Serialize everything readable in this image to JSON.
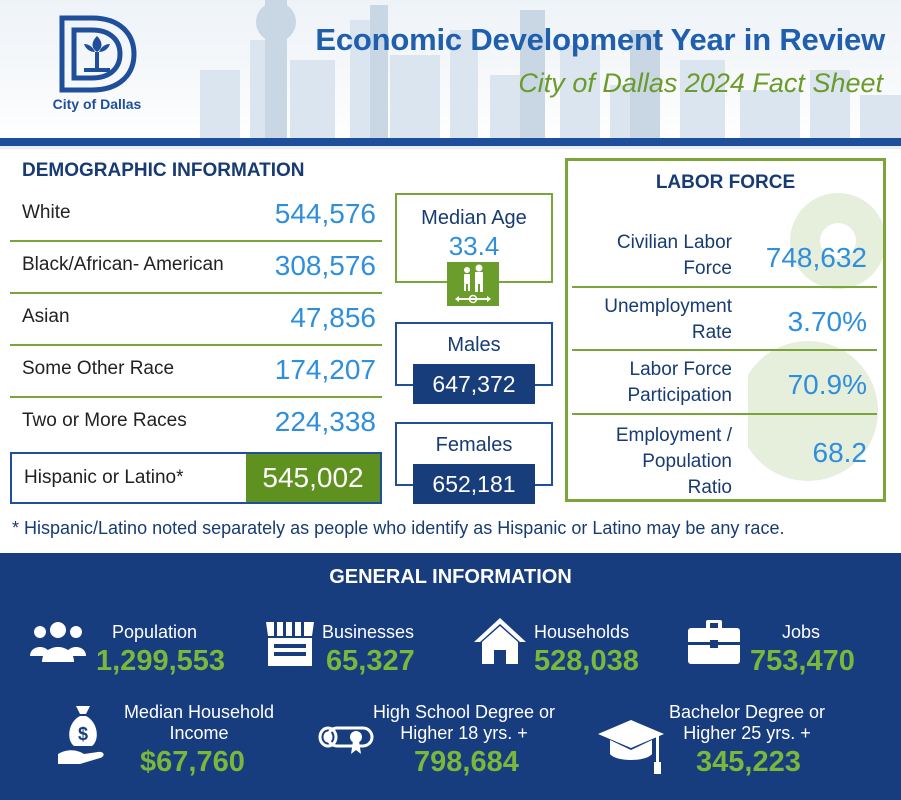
{
  "header": {
    "logo_text": "City of Dallas",
    "title": "Economic Development Year in Review",
    "subtitle": "City of Dallas 2024 Fact Sheet"
  },
  "demographics": {
    "title": "DEMOGRAPHIC INFORMATION",
    "rows": [
      {
        "label": "White",
        "value": "544,576"
      },
      {
        "label": "Black/African- American",
        "value": "308,576"
      },
      {
        "label": "Asian",
        "value": "47,856"
      },
      {
        "label": "Some Other Race",
        "value": "174,207"
      },
      {
        "label": "Two or More Races",
        "value": "224,338"
      }
    ],
    "hispanic": {
      "label": "Hispanic or Latino*",
      "value": "545,002"
    }
  },
  "median_age": {
    "label": "Median Age",
    "value": "33.4"
  },
  "males": {
    "label": "Males",
    "value": "647,372"
  },
  "females": {
    "label": "Females",
    "value": "652,181"
  },
  "labor_force": {
    "title": "LABOR FORCE",
    "rows": [
      {
        "label_line1": "Civilian Labor",
        "label_line2": "Force",
        "label_line3": "",
        "value": "748,632"
      },
      {
        "label_line1": "Unemployment",
        "label_line2": "Rate",
        "label_line3": "",
        "value": "3.70%"
      },
      {
        "label_line1": "Labor Force",
        "label_line2": "Participation",
        "label_line3": "",
        "value": "70.9%"
      },
      {
        "label_line1": "Employment /",
        "label_line2": "Population",
        "label_line3": "Ratio",
        "value": "68.2"
      }
    ]
  },
  "footnote": "* Hispanic/Latino noted separately as people who identify as Hispanic or Latino may be any race.",
  "general": {
    "title": "GENERAL INFORMATION",
    "population": {
      "label": "Population",
      "value": "1,299,553"
    },
    "businesses": {
      "label": "Businesses",
      "value": "65,327"
    },
    "households": {
      "label": "Households",
      "value": "528,038"
    },
    "jobs": {
      "label": "Jobs",
      "value": "753,470"
    },
    "income": {
      "label_line1": "Median Household",
      "label_line2": "Income",
      "value": "$67,760"
    },
    "high_school": {
      "label_line1": "High School Degree or",
      "label_line2": "Higher 18 yrs. +",
      "value": "798,684"
    },
    "bachelor": {
      "label_line1": "Bachelor Degree or",
      "label_line2": "Higher 25 yrs. +",
      "value": "345,223"
    }
  },
  "colors": {
    "navy": "#173d7f",
    "blue": "#2f8fdc",
    "green": "#6a9d2b"
  }
}
